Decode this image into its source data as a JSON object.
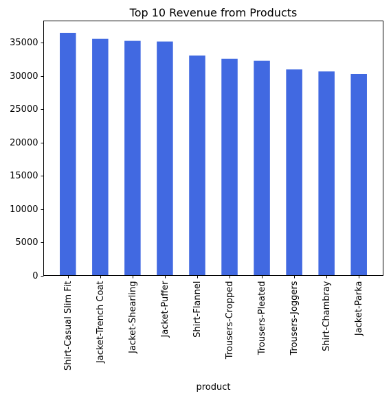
{
  "chart_data": {
    "type": "bar",
    "title": "Top 10 Revenue from Products",
    "xlabel": "product",
    "ylabel": "",
    "categories": [
      "Shirt-Casual Slim Fit",
      "Jacket-Trench Coat",
      "Jacket-Shearling",
      "Jacket-Puffer",
      "Shirt-Flannel",
      "Trousers-Cropped",
      "Trousers-Pleated",
      "Trousers-Joggers",
      "Shirt-Chambray",
      "Jacket-Parka"
    ],
    "values": [
      36500,
      35600,
      35300,
      35200,
      33100,
      32600,
      32300,
      31000,
      30700,
      30300
    ],
    "ylim": [
      0,
      38300
    ],
    "yticks": [
      0,
      5000,
      10000,
      15000,
      20000,
      25000,
      30000,
      35000
    ],
    "bar_color": "#4169e1",
    "grid": false,
    "legend": "none"
  }
}
